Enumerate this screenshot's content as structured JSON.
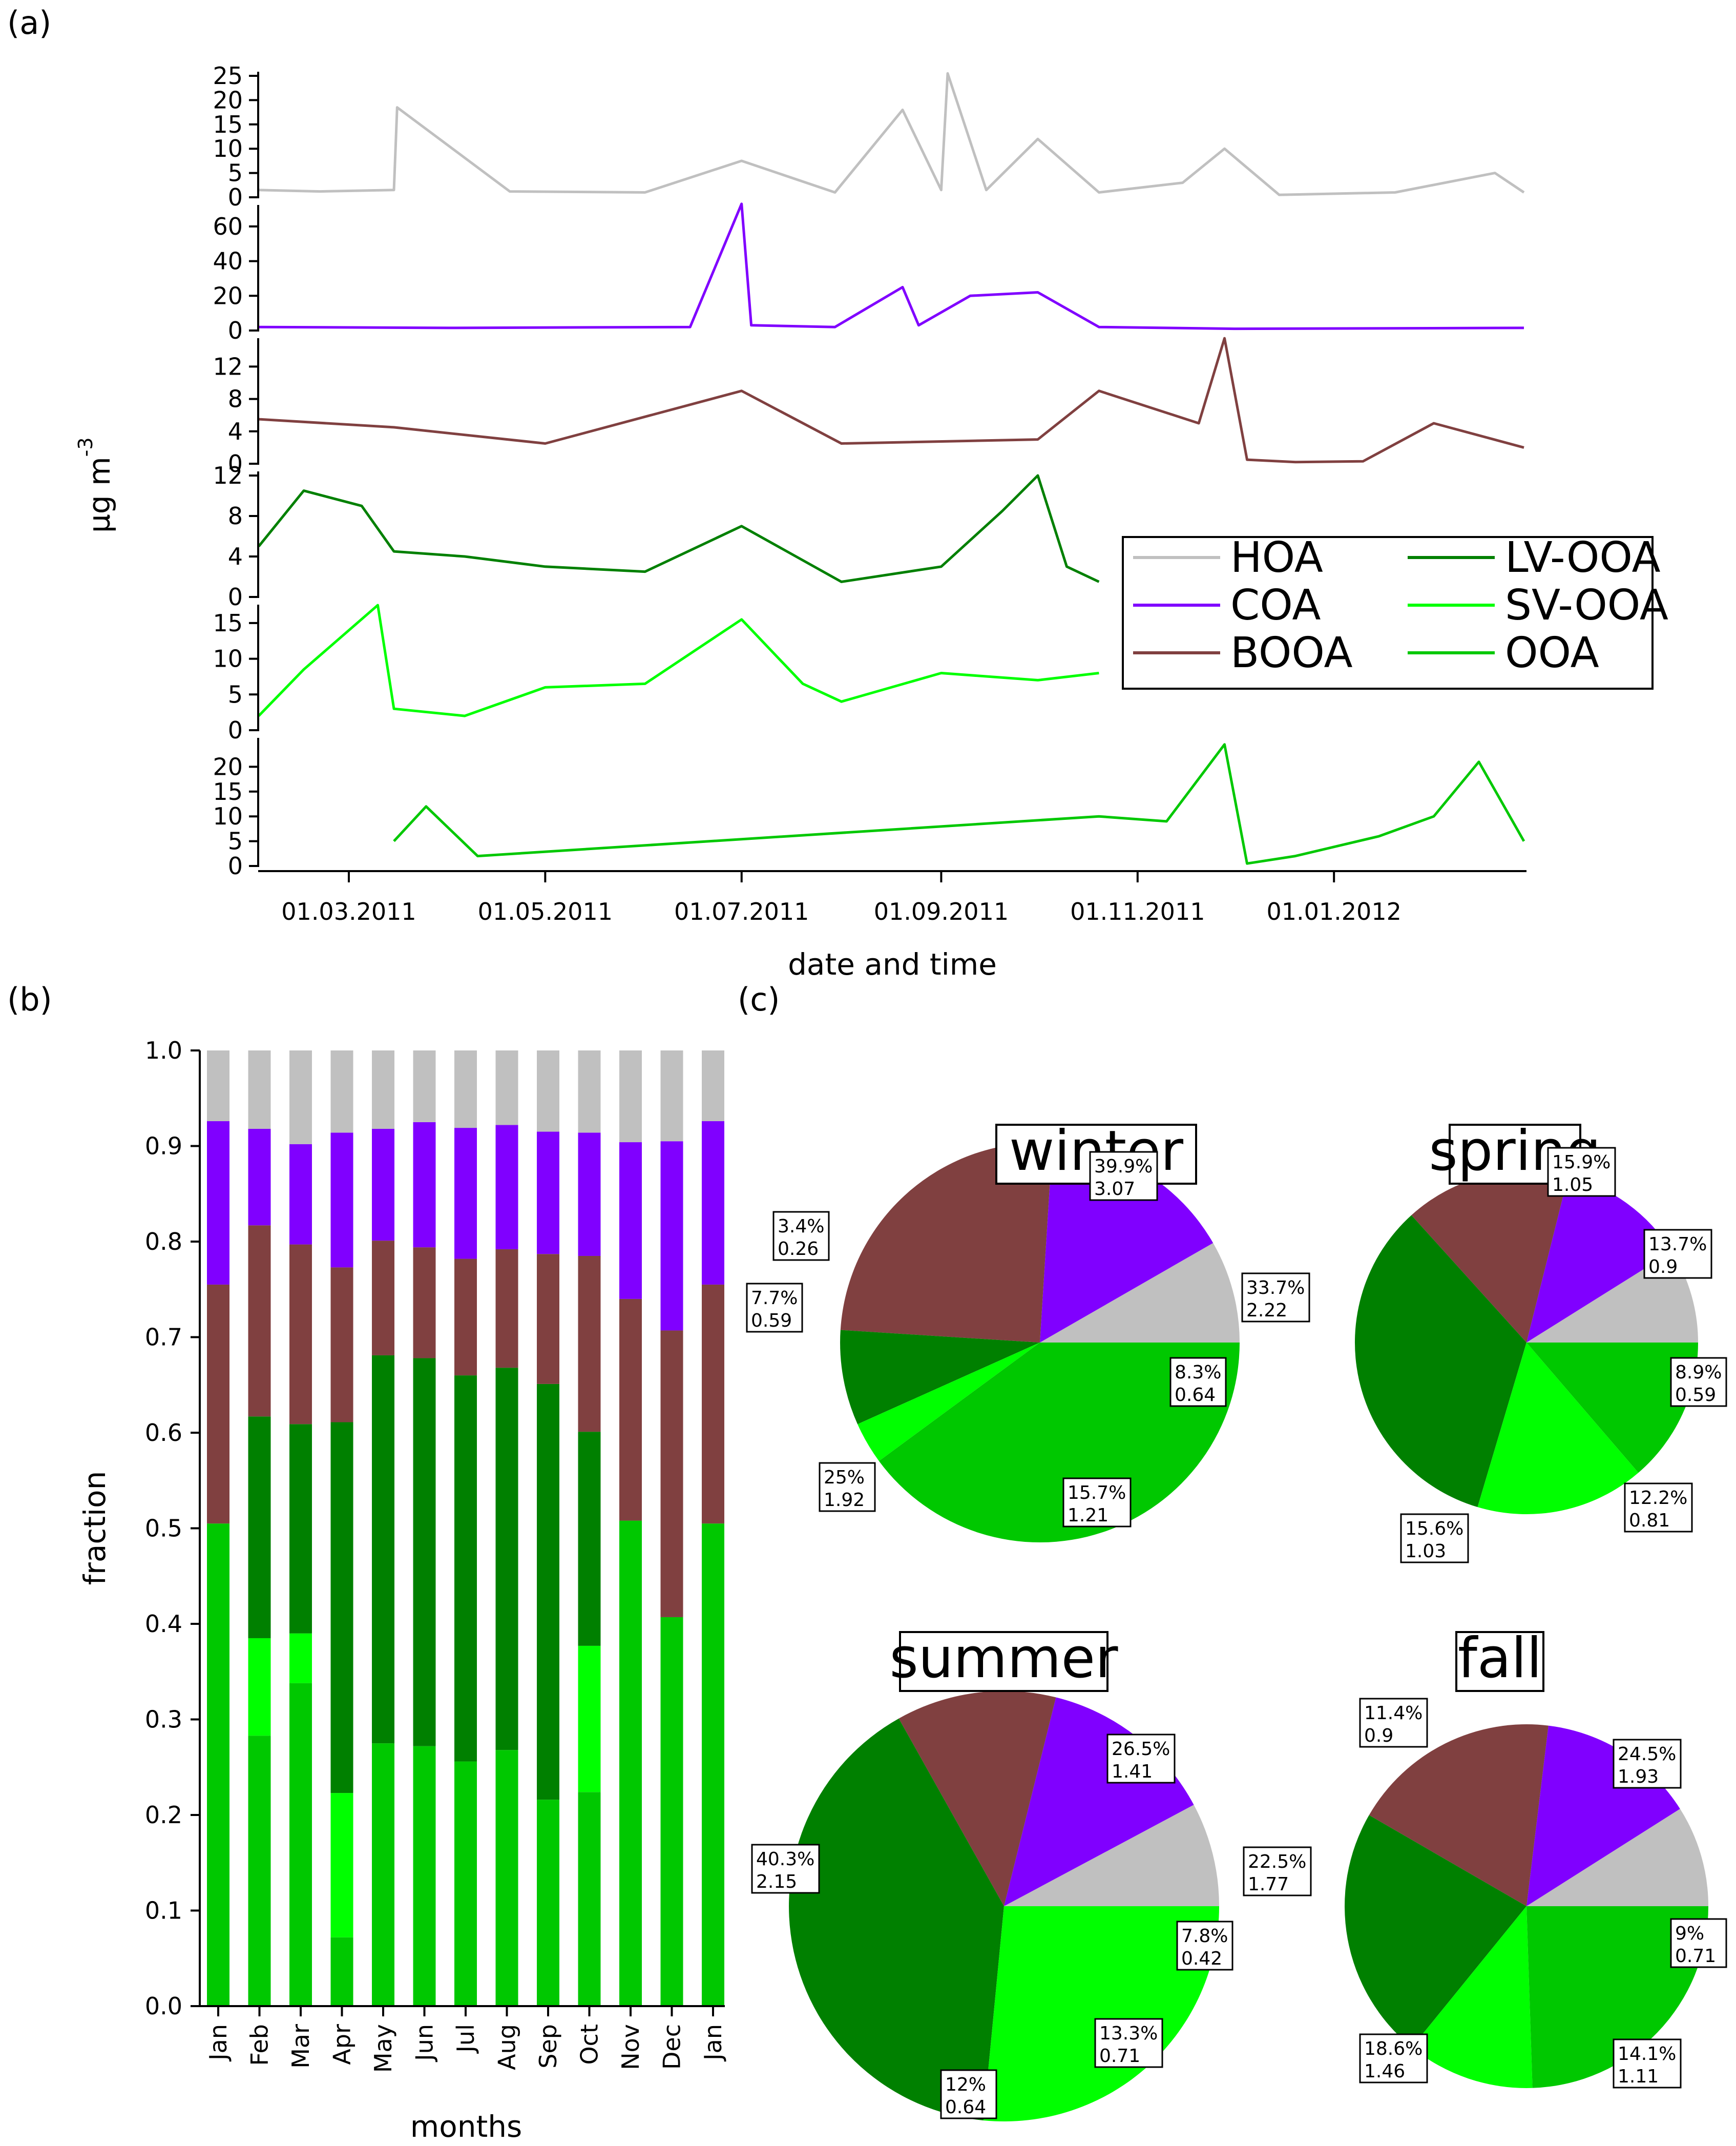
{
  "panels": {
    "a": "(a)",
    "b": "(b)",
    "c": "(c)"
  },
  "colors": {
    "HOA": "#c0c0c0",
    "COA": "#8000ff",
    "BOOA": "#804040",
    "LV-OOA": "#008000",
    "SV-OOA": "#00ff00",
    "OOA": "#00c800"
  },
  "panel_a": {
    "xlabel": "date and time",
    "ylabel": "µg m",
    "ylabel_sup": "-3",
    "x_ticks": [
      "01.03.2011",
      "01.05.2011",
      "01.07.2011",
      "01.09.2011",
      "01.11.2011",
      "01.01.2012"
    ],
    "legend": [
      "HOA",
      "LV-OOA",
      "COA",
      "SV-OOA",
      "BOOA",
      "OOA"
    ]
  },
  "panel_b": {
    "ylabel": "fraction",
    "xlabel": "months",
    "y_ticks": [
      "1.0",
      "0.9",
      "0.8",
      "0.7",
      "0.6",
      "0.5",
      "0.4",
      "0.3",
      "0.2",
      "0.1",
      "0.0"
    ]
  },
  "chart_data": [
    {
      "type": "line",
      "panel": "(a)",
      "xlabel": "date and time",
      "ylabel": "µg m-3",
      "x_range": [
        "2011-02-01",
        "2012-02-29"
      ],
      "x_ticks": [
        "2011-03-01",
        "2011-05-01",
        "2011-07-01",
        "2011-09-01",
        "2011-11-01",
        "2012-01-01"
      ],
      "series": [
        {
          "name": "HOA",
          "ylim": [
            0,
            25
          ],
          "y_ticks": [
            0,
            5,
            10,
            15,
            20,
            25
          ],
          "x": [
            "2011-02-01",
            "2011-02-20",
            "2011-03-15",
            "2011-03-16",
            "2011-04-20",
            "2011-06-01",
            "2011-07-01",
            "2011-07-30",
            "2011-08-20",
            "2011-09-01",
            "2011-09-03",
            "2011-09-15",
            "2011-10-01",
            "2011-10-20",
            "2011-11-15",
            "2011-11-28",
            "2011-12-15",
            "2012-01-20",
            "2012-02-20",
            "2012-02-29"
          ],
          "y": [
            1.5,
            1.2,
            1.5,
            18.5,
            1.2,
            1.0,
            7.5,
            1.0,
            18,
            1.5,
            25.5,
            1.5,
            12,
            1.0,
            3.0,
            10,
            0.5,
            1.0,
            5.0,
            1.0
          ]
        },
        {
          "name": "COA",
          "ylim": [
            0,
            70
          ],
          "y_ticks": [
            0,
            20,
            40,
            60
          ],
          "x": [
            "2011-02-01",
            "2011-04-01",
            "2011-06-15",
            "2011-07-01",
            "2011-07-04",
            "2011-07-30",
            "2011-08-20",
            "2011-08-25",
            "2011-09-10",
            "2011-10-01",
            "2011-10-20",
            "2011-12-01",
            "2012-02-29"
          ],
          "y": [
            2,
            1.5,
            2,
            73,
            3,
            2,
            25,
            3,
            20,
            22,
            2,
            1,
            1.5
          ]
        },
        {
          "name": "BOOA",
          "ylim": [
            0,
            15
          ],
          "y_ticks": [
            0,
            4,
            8,
            12
          ],
          "x": [
            "2011-02-01",
            "2011-03-15",
            "2011-05-01",
            "2011-07-01",
            "2011-08-01",
            "2011-10-01",
            "2011-10-20",
            "2011-11-20",
            "2011-11-28",
            "2011-12-05",
            "2011-12-20",
            "2012-01-10",
            "2012-02-01",
            "2012-02-29"
          ],
          "y": [
            5.5,
            4.5,
            2.5,
            9.0,
            2.5,
            3.0,
            9.0,
            5.0,
            15.5,
            0.5,
            0.2,
            0.3,
            5.0,
            2.0
          ]
        },
        {
          "name": "LV-OOA",
          "ylim": [
            0,
            12
          ],
          "y_ticks": [
            0,
            4,
            8,
            12
          ],
          "x": [
            "2011-02-01",
            "2011-02-15",
            "2011-03-05",
            "2011-03-15",
            "2011-04-06",
            "2011-05-01",
            "2011-06-01",
            "2011-07-01",
            "2011-08-01",
            "2011-09-01",
            "2011-09-20",
            "2011-10-01",
            "2011-10-10",
            "2011-10-20"
          ],
          "y": [
            5,
            10.5,
            9.0,
            4.5,
            4.0,
            3.0,
            2.5,
            7.0,
            1.5,
            3.0,
            8.5,
            12.0,
            3.0,
            1.5
          ]
        },
        {
          "name": "SV-OOA",
          "ylim": [
            0,
            17
          ],
          "y_ticks": [
            0,
            5,
            10,
            15
          ],
          "x": [
            "2011-02-01",
            "2011-02-15",
            "2011-03-10",
            "2011-03-15",
            "2011-04-06",
            "2011-05-01",
            "2011-06-01",
            "2011-07-01",
            "2011-07-20",
            "2011-08-01",
            "2011-09-01",
            "2011-10-01",
            "2011-10-20"
          ],
          "y": [
            2,
            8.5,
            17.5,
            3.0,
            2.0,
            6.0,
            6.5,
            15.5,
            6.5,
            4.0,
            8.0,
            7.0,
            8.0
          ]
        },
        {
          "name": "OOA",
          "ylim": [
            0,
            25
          ],
          "y_ticks": [
            0,
            5,
            10,
            15,
            20
          ],
          "x": [
            "2011-03-15",
            "2011-03-25",
            "2011-04-10",
            "2011-10-20",
            "2011-11-10",
            "2011-11-28",
            "2011-12-05",
            "2011-12-20",
            "2012-01-15",
            "2012-02-01",
            "2012-02-15",
            "2012-02-29"
          ],
          "y": [
            5,
            12,
            2,
            10,
            9,
            24.5,
            0.5,
            2,
            6,
            10,
            21,
            5
          ]
        }
      ]
    },
    {
      "type": "bar",
      "panel": "(b)",
      "stacked": true,
      "xlabel": "months",
      "ylabel": "fraction",
      "ylim": [
        0,
        1
      ],
      "categories": [
        "Jan",
        "Feb",
        "Mar",
        "Apr",
        "May",
        "Jun",
        "Jul",
        "Aug",
        "Sep",
        "Oct",
        "Nov",
        "Dec",
        "Jan"
      ],
      "series": [
        {
          "name": "OOA",
          "values": [
            0.505,
            0.283,
            0.338,
            0.072,
            0.275,
            0.272,
            0.256,
            0.268,
            0.216,
            0.224,
            0.508,
            0.407,
            0.505
          ]
        },
        {
          "name": "SV-OOA",
          "values": [
            0.0,
            0.102,
            0.052,
            0.151,
            0.0,
            0.0,
            0.0,
            0.0,
            0.0,
            0.153,
            0.0,
            0.0,
            0.0
          ]
        },
        {
          "name": "LV-OOA",
          "values": [
            0.0,
            0.232,
            0.219,
            0.388,
            0.406,
            0.406,
            0.404,
            0.4,
            0.435,
            0.224,
            0.0,
            0.0,
            0.0
          ]
        },
        {
          "name": "BOOA",
          "values": [
            0.25,
            0.2,
            0.188,
            0.162,
            0.12,
            0.116,
            0.122,
            0.124,
            0.136,
            0.184,
            0.232,
            0.3,
            0.25
          ]
        },
        {
          "name": "COA",
          "values": [
            0.171,
            0.101,
            0.105,
            0.141,
            0.117,
            0.131,
            0.137,
            0.13,
            0.128,
            0.129,
            0.164,
            0.198,
            0.171
          ]
        },
        {
          "name": "HOA",
          "values": [
            0.074,
            0.082,
            0.098,
            0.086,
            0.082,
            0.075,
            0.081,
            0.078,
            0.085,
            0.086,
            0.096,
            0.095,
            0.074
          ]
        }
      ]
    },
    {
      "type": "pie",
      "panel": "(c)",
      "title": "winter",
      "slices": [
        {
          "name": "HOA",
          "percent": 8.3,
          "value": 0.64,
          "label": [
            "8.3%",
            "0.64"
          ]
        },
        {
          "name": "COA",
          "percent": 15.7,
          "value": 1.21,
          "label": [
            "15.7%",
            "1.21"
          ]
        },
        {
          "name": "BOOA",
          "percent": 25,
          "value": 1.92,
          "label": [
            "25%",
            "1.92"
          ]
        },
        {
          "name": "LV-OOA",
          "percent": 7.7,
          "value": 0.59,
          "label": [
            "7.7%",
            "0.59"
          ]
        },
        {
          "name": "SV-OOA",
          "percent": 3.4,
          "value": 0.26,
          "label": [
            "3.4%",
            "0.26"
          ]
        },
        {
          "name": "OOA",
          "percent": 39.9,
          "value": 3.07,
          "label": [
            "39.9%",
            "3.07"
          ]
        }
      ]
    },
    {
      "type": "pie",
      "panel": "(c)",
      "title": "spring",
      "slices": [
        {
          "name": "HOA",
          "percent": 8.9,
          "value": 0.59,
          "label": [
            "8.9%",
            "0.59"
          ]
        },
        {
          "name": "COA",
          "percent": 12.2,
          "value": 0.81,
          "label": [
            "12.2%",
            "0.81"
          ]
        },
        {
          "name": "BOOA",
          "percent": 15.6,
          "value": 1.03,
          "label": [
            "15.6%",
            "1.03"
          ]
        },
        {
          "name": "LV-OOA",
          "percent": 33.7,
          "value": 2.22,
          "label": [
            "33.7%",
            "2.22"
          ]
        },
        {
          "name": "SV-OOA",
          "percent": 15.9,
          "value": 1.05,
          "label": [
            "15.9%",
            "1.05"
          ]
        },
        {
          "name": "OOA",
          "percent": 13.7,
          "value": 0.9,
          "label": [
            "13.7%",
            "0.9"
          ]
        }
      ]
    },
    {
      "type": "pie",
      "panel": "(c)",
      "title": "summer",
      "slices": [
        {
          "name": "HOA",
          "percent": 7.8,
          "value": 0.42,
          "label": [
            "7.8%",
            "0.42"
          ]
        },
        {
          "name": "COA",
          "percent": 13.3,
          "value": 0.71,
          "label": [
            "13.3%",
            "0.71"
          ]
        },
        {
          "name": "BOOA",
          "percent": 12,
          "value": 0.64,
          "label": [
            "12%",
            "0.64"
          ]
        },
        {
          "name": "LV-OOA",
          "percent": 40.3,
          "value": 2.15,
          "label": [
            "40.3%",
            "2.15"
          ]
        },
        {
          "name": "SV-OOA",
          "percent": 26.5,
          "value": 1.41,
          "label": [
            "26.5%",
            "1.41"
          ]
        }
      ]
    },
    {
      "type": "pie",
      "panel": "(c)",
      "title": "fall",
      "slices": [
        {
          "name": "HOA",
          "percent": 9,
          "value": 0.71,
          "label": [
            "9%",
            "0.71"
          ]
        },
        {
          "name": "COA",
          "percent": 14.1,
          "value": 1.11,
          "label": [
            "14.1%",
            "1.11"
          ]
        },
        {
          "name": "BOOA",
          "percent": 18.6,
          "value": 1.46,
          "label": [
            "18.6%",
            "1.46"
          ]
        },
        {
          "name": "LV-OOA",
          "percent": 22.5,
          "value": 1.77,
          "label": [
            "22.5%",
            "1.77"
          ]
        },
        {
          "name": "SV-OOA",
          "percent": 11.4,
          "value": 0.9,
          "label": [
            "11.4%",
            "0.9"
          ]
        },
        {
          "name": "OOA",
          "percent": 24.5,
          "value": 1.93,
          "label": [
            "24.5%",
            "1.93"
          ]
        }
      ]
    }
  ]
}
